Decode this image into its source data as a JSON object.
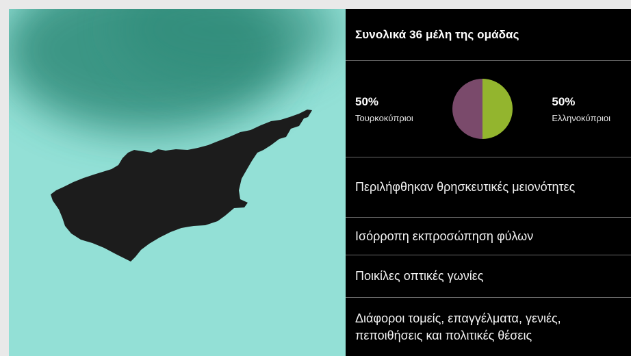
{
  "title": "Συνολικά 36 μέλη της ομάδας",
  "stats": {
    "left": {
      "percent": "50%",
      "label": "Τουρκοκύπριοι",
      "value": 50,
      "color": "#7a4a6b"
    },
    "right": {
      "percent": "50%",
      "label": "Ελληνοκύπριοι",
      "value": 50,
      "color": "#93b52e"
    }
  },
  "items": [
    "Περιλήφθηκαν θρησκευτικές μειονότητες",
    "Ισόρροπη εκπροσώπηση φύλων",
    "Ποικίλες οπτικές γωνίες",
    "Διάφοροι τομείς, επαγγέλματα, γενιές, πεποιθήσεις και πολιτικές θέσεις"
  ],
  "colors": {
    "map_background": "#93e0d6",
    "haze": "#2f8a78",
    "island": "#1c1c1c",
    "panel": "#000000"
  },
  "icons": {
    "map": "cyprus-map-icon"
  }
}
